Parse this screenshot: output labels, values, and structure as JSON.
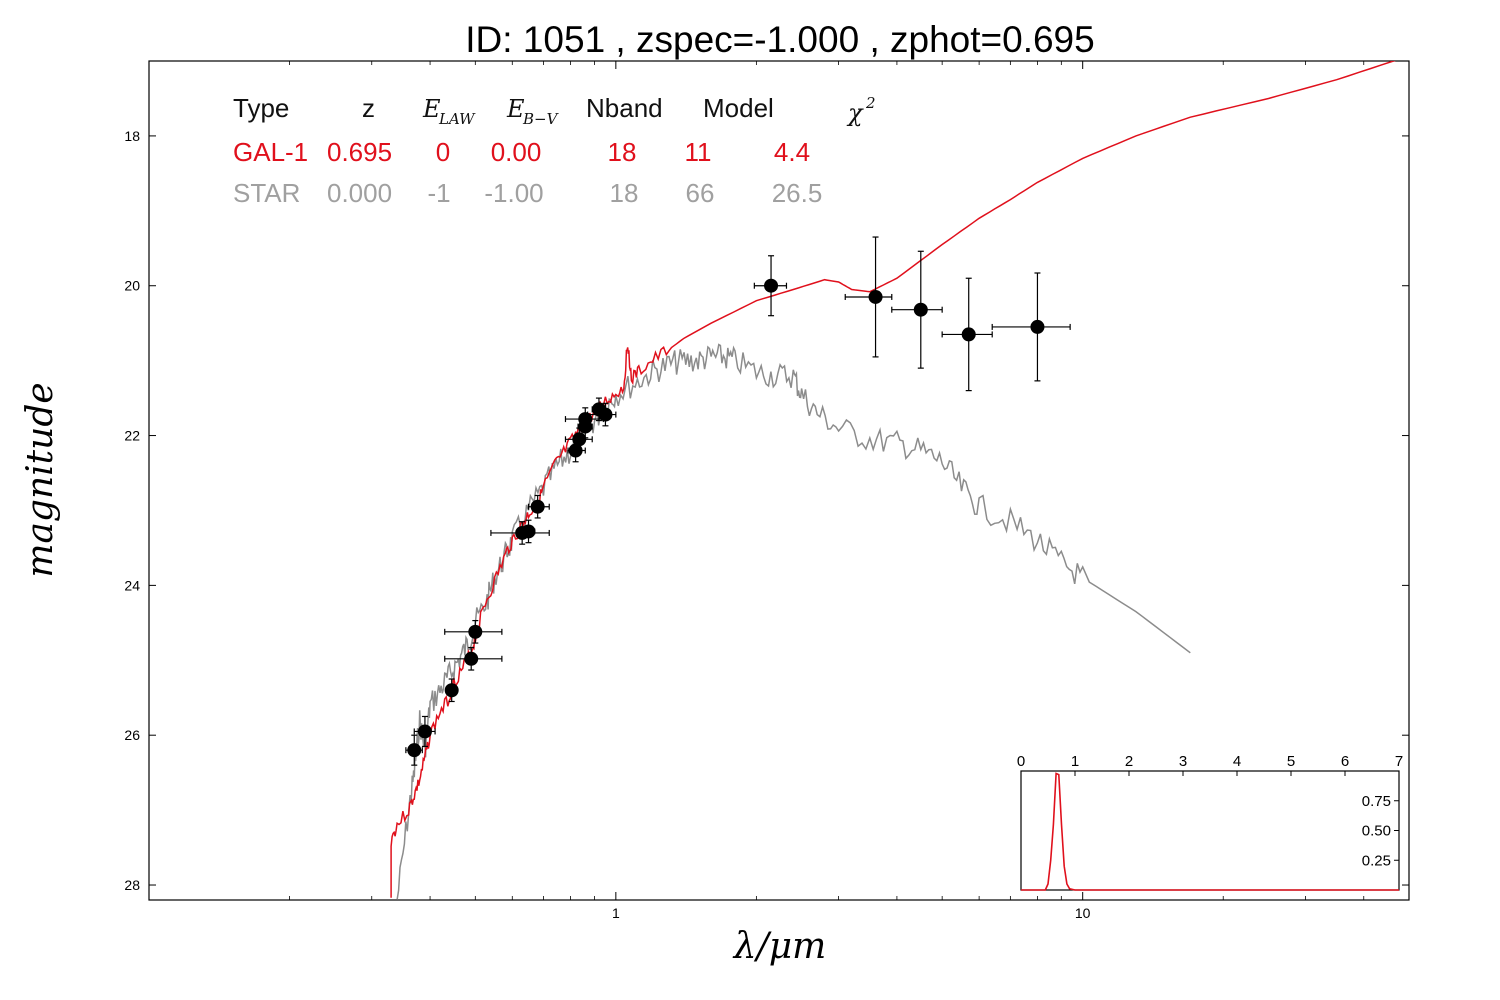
{
  "title": "ID:  1051  , zspec=-1.000 , zphot=0.695",
  "colors": {
    "galaxy": "#e0101c",
    "star": "#8c8c8c",
    "points": "#000000",
    "star_text": "#a0a0a0"
  },
  "table": {
    "headers": {
      "type": "Type",
      "z": "z",
      "elaw": "E",
      "elaw_sub": "LAW",
      "ebv": "E",
      "ebv_sub": "B−V",
      "nband": "Nband",
      "model": "Model",
      "chi": "χ",
      "chi_sup": "2"
    },
    "rows": [
      {
        "type": "GAL-1",
        "z": "0.695",
        "elaw": "0",
        "ebv": "0.00",
        "nband": "18",
        "model": "11",
        "chi2": "4.4"
      },
      {
        "type": "STAR",
        "z": "0.000",
        "elaw": "-1",
        "ebv": "-1.00",
        "nband": "18",
        "model": "66",
        "chi2": "26.5"
      }
    ]
  },
  "chart_data": [
    {
      "type": "scatter",
      "xlabel": "λ/μm",
      "ylabel": "magnitude",
      "xscale": "log",
      "xlim": [
        0.1,
        50
      ],
      "ylim": [
        28.2,
        17.0
      ],
      "x_ticks": [
        {
          "value": 1,
          "label": "1"
        },
        {
          "value": 10,
          "label": "10"
        }
      ],
      "y_ticks": [
        {
          "value": 18,
          "label": "18"
        },
        {
          "value": 20,
          "label": "20"
        },
        {
          "value": 22,
          "label": "22"
        },
        {
          "value": 24,
          "label": "24"
        },
        {
          "value": 26,
          "label": "26"
        },
        {
          "value": 28,
          "label": "28"
        }
      ],
      "points": [
        {
          "x": 0.37,
          "y": 26.2,
          "xerr": [
            0.355,
            0.385
          ],
          "yerr": 0.2
        },
        {
          "x": 0.39,
          "y": 25.95,
          "xerr": [
            0.37,
            0.41
          ],
          "yerr": 0.2
        },
        {
          "x": 0.445,
          "y": 25.4,
          "xerr": [
            0.44,
            0.45
          ],
          "yerr": 0.15
        },
        {
          "x": 0.49,
          "y": 24.98,
          "xerr": [
            0.43,
            0.57
          ],
          "yerr": 0.15
        },
        {
          "x": 0.5,
          "y": 24.62,
          "xerr": [
            0.43,
            0.57
          ],
          "yerr": 0.15
        },
        {
          "x": 0.63,
          "y": 23.3,
          "xerr": [
            0.54,
            0.72
          ],
          "yerr": 0.15
        },
        {
          "x": 0.65,
          "y": 23.28,
          "xerr": [
            0.63,
            0.67
          ],
          "yerr": 0.15
        },
        {
          "x": 0.68,
          "y": 22.95,
          "xerr": [
            0.65,
            0.72
          ],
          "yerr": 0.15
        },
        {
          "x": 0.82,
          "y": 22.2,
          "xerr": [
            0.79,
            0.86
          ],
          "yerr": 0.15
        },
        {
          "x": 0.835,
          "y": 22.05,
          "xerr": [
            0.78,
            0.89
          ],
          "yerr": 0.15
        },
        {
          "x": 0.86,
          "y": 21.88,
          "xerr": [
            0.83,
            0.89
          ],
          "yerr": 0.15
        },
        {
          "x": 0.86,
          "y": 21.78,
          "xerr": [
            0.78,
            0.94
          ],
          "yerr": 0.15
        },
        {
          "x": 0.92,
          "y": 21.65,
          "xerr": [
            0.89,
            0.95
          ],
          "yerr": 0.15
        },
        {
          "x": 0.95,
          "y": 21.72,
          "xerr": [
            0.87,
            1.0
          ],
          "yerr": 0.15
        },
        {
          "x": 2.15,
          "y": 20.0,
          "xerr": [
            1.98,
            2.32
          ],
          "yerr": 0.4
        },
        {
          "x": 3.6,
          "y": 20.15,
          "xerr": [
            3.1,
            3.9
          ],
          "yerr": 0.8
        },
        {
          "x": 4.5,
          "y": 20.32,
          "xerr": [
            3.9,
            5.0
          ],
          "yerr": 0.78
        },
        {
          "x": 5.7,
          "y": 20.65,
          "xerr": [
            5.0,
            6.4
          ],
          "yerr": 0.75
        },
        {
          "x": 8.0,
          "y": 20.55,
          "xerr": [
            6.4,
            9.4
          ],
          "yerr": 0.72
        }
      ],
      "series": [
        {
          "x": [
            0.33,
            0.33,
            0.34,
            0.36,
            0.37,
            0.38,
            0.39,
            0.4,
            0.42,
            0.44,
            0.45,
            0.47,
            0.49,
            0.5,
            0.52,
            0.55,
            0.58,
            0.6,
            0.63,
            0.65,
            0.68,
            0.7,
            0.74,
            0.78,
            0.82,
            0.86,
            0.9,
            0.95,
            1.0,
            1.04,
            1.06,
            1.08,
            1.12,
            1.2,
            1.3,
            1.4,
            1.6,
            2.0,
            2.4,
            2.8,
            3.0,
            3.2,
            3.5,
            4.0,
            5.0,
            6.0,
            7.0,
            8.0,
            10.0,
            13.0,
            17.0,
            25.0,
            35.0,
            49.0
          ],
          "y": [
            28.2,
            27.4,
            27.2,
            27.0,
            26.8,
            26.6,
            26.3,
            26.0,
            25.7,
            25.5,
            25.3,
            25.1,
            24.9,
            24.7,
            24.3,
            23.95,
            23.6,
            23.4,
            23.2,
            23.05,
            22.9,
            22.7,
            22.4,
            22.2,
            22.0,
            21.85,
            21.7,
            21.55,
            21.45,
            21.35,
            20.75,
            21.25,
            21.15,
            21.0,
            20.85,
            20.7,
            20.5,
            20.2,
            20.05,
            19.92,
            19.95,
            20.05,
            20.08,
            19.9,
            19.45,
            19.1,
            18.85,
            18.62,
            18.3,
            18.0,
            17.75,
            17.5,
            17.25,
            16.95
          ]
        },
        {
          "x": [
            0.34,
            0.36,
            0.37,
            0.38,
            0.39,
            0.4,
            0.42,
            0.44,
            0.46,
            0.48,
            0.5,
            0.53,
            0.55,
            0.58,
            0.6,
            0.65,
            0.7,
            0.75,
            0.8,
            0.85,
            0.9,
            0.95,
            1.0,
            1.1,
            1.2,
            1.3,
            1.4,
            1.5,
            1.6,
            1.7,
            1.8,
            2.0,
            2.2,
            2.4,
            2.5,
            2.7,
            3.0,
            3.5,
            4.0,
            4.5,
            5.0,
            5.5,
            6.0,
            7.0,
            8.0,
            9.0,
            10.0,
            13.0,
            17.0
          ],
          "y": [
            28.2,
            27.0,
            26.5,
            25.8,
            26.2,
            25.6,
            25.4,
            25.2,
            25.0,
            24.8,
            24.5,
            24.2,
            23.9,
            23.6,
            23.4,
            23.0,
            22.7,
            22.4,
            22.2,
            22.0,
            21.8,
            21.6,
            21.45,
            21.3,
            21.15,
            21.05,
            21.0,
            21.0,
            20.95,
            20.95,
            21.0,
            21.15,
            21.2,
            21.2,
            21.45,
            21.7,
            21.9,
            22.05,
            22.1,
            22.2,
            22.35,
            22.7,
            22.95,
            23.15,
            23.4,
            23.7,
            23.9,
            24.35,
            24.9
          ]
        }
      ]
    },
    {
      "type": "line",
      "xlim": [
        0,
        7
      ],
      "ylim": [
        0,
        1
      ],
      "x_ticks": [
        0,
        1,
        2,
        3,
        4,
        5,
        6,
        7
      ],
      "y_ticks": [
        {
          "value": 0.25,
          "label": "0.25"
        },
        {
          "value": 0.5,
          "label": "0.50"
        },
        {
          "value": 0.75,
          "label": "0.75"
        }
      ],
      "series": [
        {
          "x": [
            0,
            0.45,
            0.5,
            0.55,
            0.6,
            0.65,
            0.7,
            0.75,
            0.8,
            0.85,
            0.9,
            1.0,
            1.2,
            7.0
          ],
          "y": [
            0.0,
            0.0,
            0.05,
            0.25,
            0.55,
            0.98,
            0.97,
            0.55,
            0.2,
            0.05,
            0.01,
            0.0,
            0.0,
            0.0
          ]
        }
      ]
    }
  ]
}
